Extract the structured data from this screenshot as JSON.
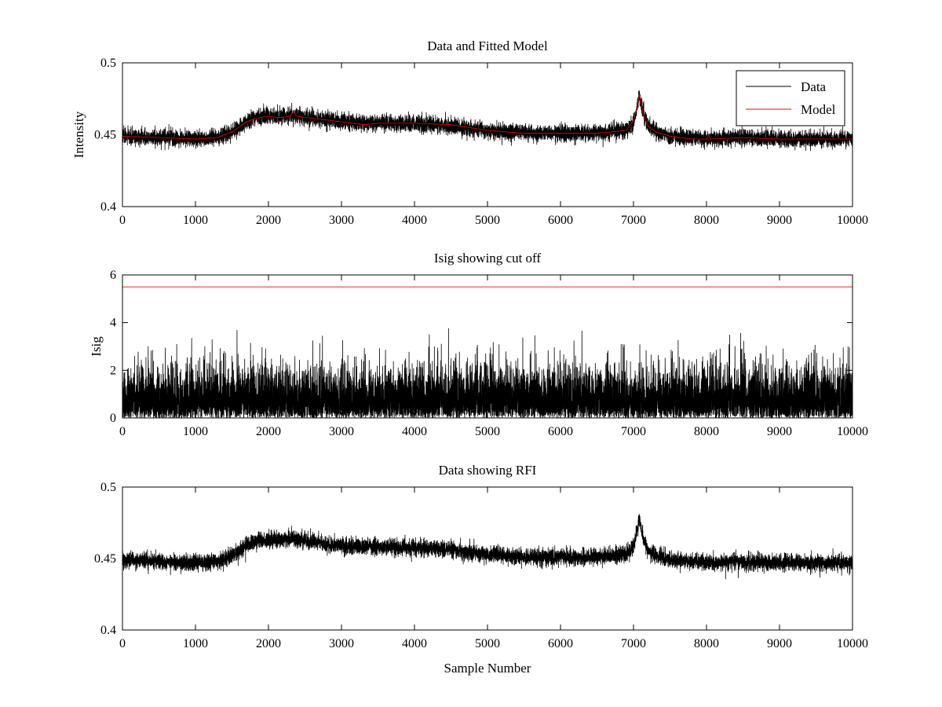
{
  "figure": {
    "background": "#ffffff"
  },
  "chart_data": [
    {
      "type": "line",
      "title": "Data and Fitted Model",
      "xlabel": "",
      "ylabel": "Intensity",
      "xlim": [
        0,
        10000
      ],
      "ylim": [
        0.4,
        0.5
      ],
      "xticks": [
        0,
        1000,
        2000,
        3000,
        4000,
        5000,
        6000,
        7000,
        8000,
        9000,
        10000
      ],
      "xtick_labels": [
        "0",
        "1000",
        "2000",
        "3000",
        "4000",
        "5000",
        "6000",
        "7000",
        "8000",
        "9000",
        "10000"
      ],
      "yticks": [
        0.4,
        0.45,
        0.5
      ],
      "ytick_labels": [
        "0.4",
        "0.45",
        "0.5"
      ],
      "grid": false,
      "legend": {
        "placement": "top-right",
        "entries": [
          "Data",
          "Model"
        ]
      },
      "series": [
        {
          "name": "Data",
          "color": "#000000",
          "kind": "noisy",
          "noise_amplitude": 0.0055,
          "n_points": 10000,
          "x": [
            0,
            500,
            1000,
            1300,
            1500,
            1700,
            1800,
            2000,
            2200,
            2300,
            2500,
            3000,
            3500,
            4000,
            4500,
            5000,
            5500,
            6000,
            6500,
            6900,
            7000,
            7050,
            7080,
            7100,
            7150,
            7200,
            7300,
            7500,
            8000,
            8500,
            9000,
            9500,
            10000
          ],
          "y": [
            0.449,
            0.448,
            0.447,
            0.448,
            0.452,
            0.459,
            0.462,
            0.463,
            0.463,
            0.464,
            0.462,
            0.459,
            0.458,
            0.458,
            0.456,
            0.453,
            0.451,
            0.451,
            0.451,
            0.453,
            0.458,
            0.47,
            0.478,
            0.472,
            0.462,
            0.456,
            0.452,
            0.449,
            0.447,
            0.448,
            0.447,
            0.447,
            0.447
          ]
        },
        {
          "name": "Model",
          "color": "#ff0000",
          "kind": "line",
          "x": [
            0,
            500,
            1000,
            1300,
            1500,
            1700,
            1800,
            1900,
            2000,
            2100,
            2200,
            2300,
            2340,
            2380,
            2500,
            3000,
            3300,
            3500,
            4000,
            4500,
            5000,
            5500,
            6000,
            6500,
            6900,
            7000,
            7050,
            7080,
            7100,
            7150,
            7200,
            7300,
            7500,
            7800,
            8000,
            8030,
            8060,
            8500,
            9000,
            9500,
            10000
          ],
          "y": [
            0.449,
            0.448,
            0.447,
            0.448,
            0.452,
            0.459,
            0.461,
            0.462,
            0.463,
            0.462,
            0.462,
            0.463,
            0.467,
            0.463,
            0.462,
            0.459,
            0.457,
            0.458,
            0.458,
            0.457,
            0.453,
            0.451,
            0.451,
            0.451,
            0.453,
            0.46,
            0.47,
            0.478,
            0.472,
            0.462,
            0.456,
            0.452,
            0.449,
            0.447,
            0.447,
            0.45,
            0.447,
            0.448,
            0.447,
            0.447,
            0.447
          ]
        }
      ]
    },
    {
      "type": "line",
      "title": "Isig showing cut off",
      "xlabel": "",
      "ylabel": "Isig",
      "xlim": [
        0,
        10000
      ],
      "ylim": [
        0,
        6
      ],
      "xticks": [
        0,
        1000,
        2000,
        3000,
        4000,
        5000,
        6000,
        7000,
        8000,
        9000,
        10000
      ],
      "xtick_labels": [
        "0",
        "1000",
        "2000",
        "3000",
        "4000",
        "5000",
        "6000",
        "7000",
        "8000",
        "9000",
        "10000"
      ],
      "yticks": [
        0,
        2,
        4,
        6
      ],
      "ytick_labels": [
        "0",
        "2",
        "4",
        "6"
      ],
      "grid": false,
      "series": [
        {
          "color": "#000000",
          "kind": "abs_noise",
          "n_points": 10000,
          "mean_level": 0.8,
          "max_value": 3.8
        },
        {
          "color": "#ff0000",
          "kind": "line",
          "x": [
            0,
            10000
          ],
          "y": [
            5.5,
            5.5
          ]
        }
      ]
    },
    {
      "type": "line",
      "title": "Data showing RFI",
      "xlabel": "Sample Number",
      "ylabel": "",
      "xlim": [
        0,
        10000
      ],
      "ylim": [
        0.4,
        0.5
      ],
      "xticks": [
        0,
        1000,
        2000,
        3000,
        4000,
        5000,
        6000,
        7000,
        8000,
        9000,
        10000
      ],
      "xtick_labels": [
        "0",
        "1000",
        "2000",
        "3000",
        "4000",
        "5000",
        "6000",
        "7000",
        "8000",
        "9000",
        "10000"
      ],
      "yticks": [
        0.4,
        0.45,
        0.5
      ],
      "ytick_labels": [
        "0.4",
        "0.45",
        "0.5"
      ],
      "grid": false,
      "series": [
        {
          "color": "#000000",
          "kind": "noisy",
          "noise_amplitude": 0.0055,
          "n_points": 10000,
          "x": [
            0,
            500,
            1000,
            1300,
            1500,
            1700,
            1800,
            2000,
            2200,
            2300,
            2500,
            3000,
            3500,
            4000,
            4500,
            5000,
            5500,
            6000,
            6500,
            6900,
            7000,
            7050,
            7080,
            7100,
            7150,
            7200,
            7300,
            7500,
            8000,
            8500,
            9000,
            9500,
            10000
          ],
          "y": [
            0.449,
            0.448,
            0.447,
            0.448,
            0.452,
            0.459,
            0.462,
            0.463,
            0.463,
            0.464,
            0.462,
            0.459,
            0.458,
            0.458,
            0.456,
            0.453,
            0.451,
            0.451,
            0.451,
            0.453,
            0.458,
            0.47,
            0.478,
            0.472,
            0.462,
            0.456,
            0.452,
            0.449,
            0.447,
            0.448,
            0.447,
            0.447,
            0.447
          ]
        }
      ]
    }
  ]
}
